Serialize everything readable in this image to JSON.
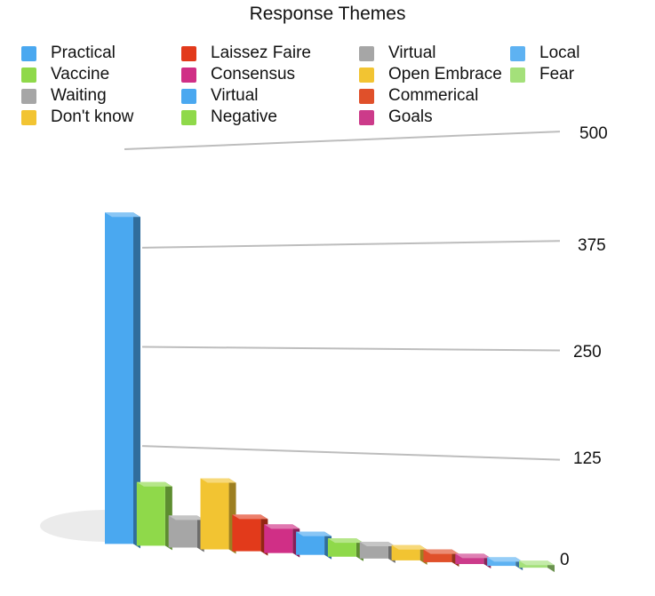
{
  "chart_data": {
    "type": "bar",
    "title": "Response Themes",
    "xlabel": "",
    "ylabel": "",
    "ylim": [
      0,
      500
    ],
    "yticks": [
      0,
      125,
      250,
      375,
      500
    ],
    "grid": true,
    "legend_position": "top",
    "categories": [
      "Practical",
      "Vaccine",
      "Waiting",
      "Don't know",
      "Laissez Faire",
      "Consensus",
      "Virtual",
      "Negative",
      "Virtual",
      "Open Embrace",
      "Commerical",
      "Goals",
      "Local",
      "Fear"
    ],
    "values": [
      420,
      80,
      40,
      88,
      45,
      35,
      28,
      22,
      20,
      18,
      15,
      12,
      10,
      8
    ],
    "colors": [
      "#4aa8f0",
      "#8fd94a",
      "#a6a6a6",
      "#f2c432",
      "#e23a1b",
      "#d02f86",
      "#4aa8f0",
      "#8fd94a",
      "#a6a6a6",
      "#f2c432",
      "#e0502a",
      "#cc3b8a",
      "#5eb2f2",
      "#a4e07a"
    ]
  }
}
